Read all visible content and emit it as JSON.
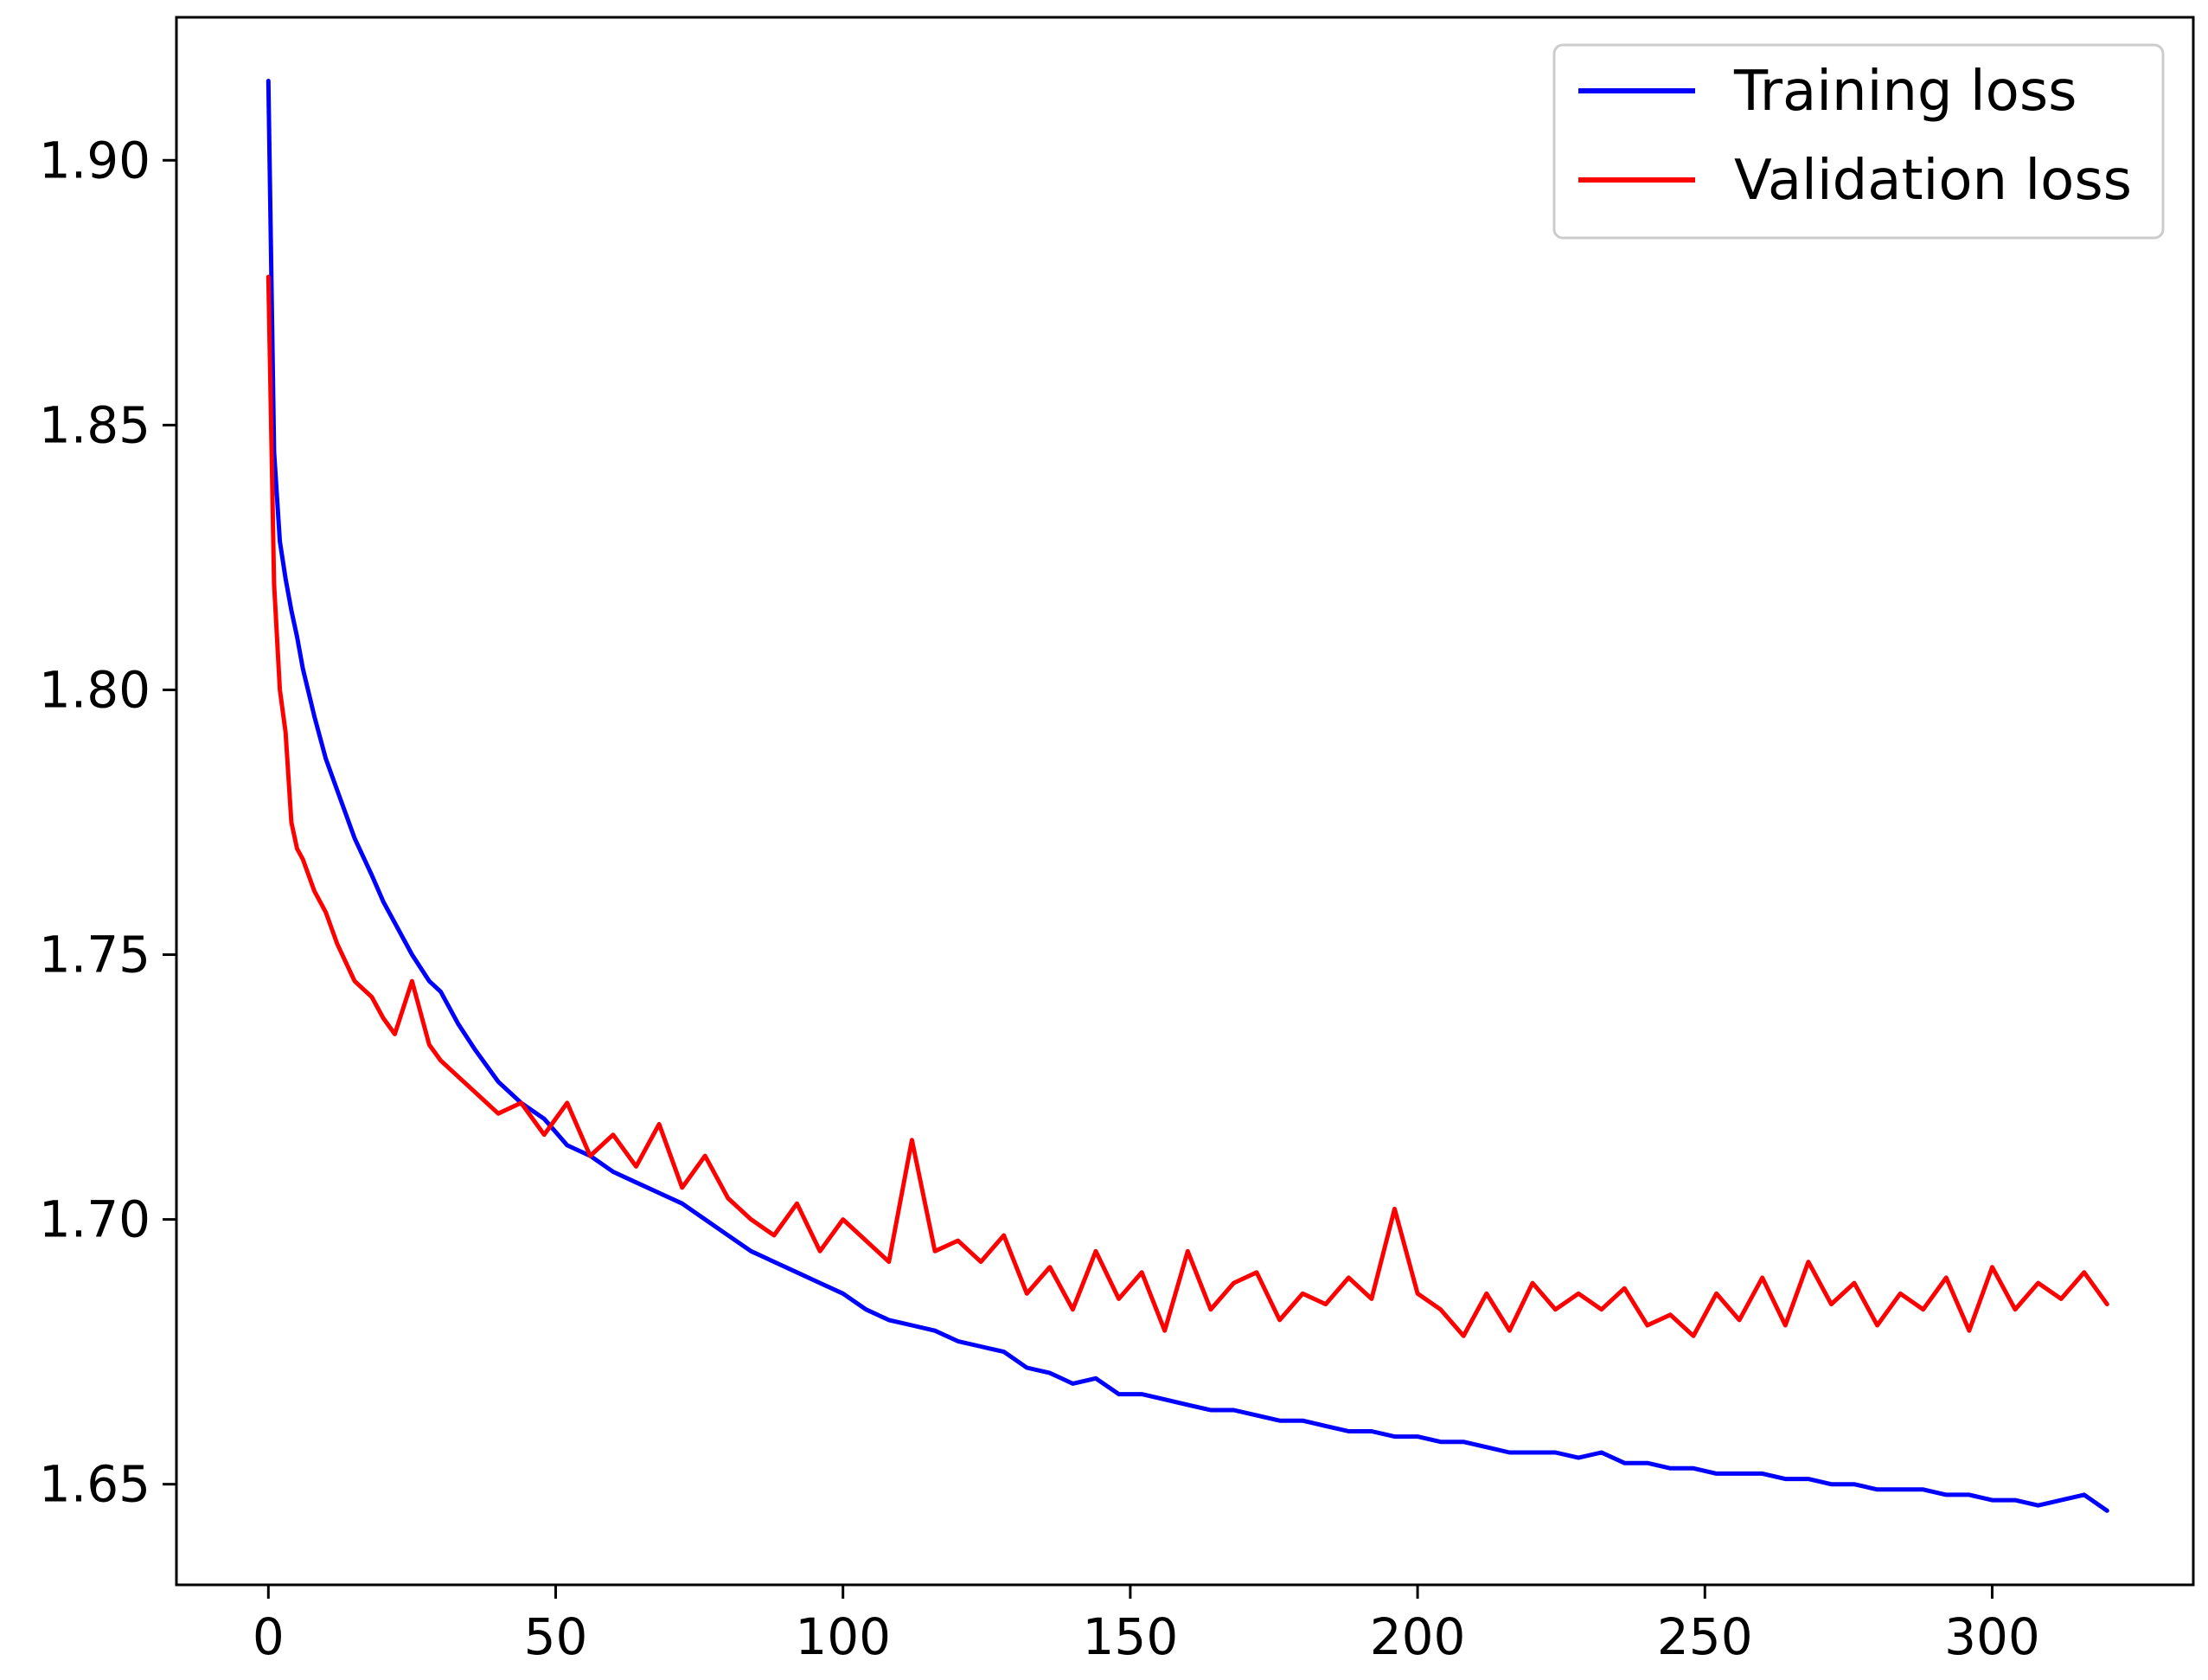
{
  "chart_data": {
    "type": "line",
    "title": "",
    "xlabel": "",
    "ylabel": "",
    "xlim": [
      -16,
      335
    ],
    "ylim": [
      1.631,
      1.927
    ],
    "xticks": [
      0,
      50,
      100,
      150,
      200,
      250,
      300
    ],
    "xtick_labels": [
      "0",
      "50",
      "100",
      "150",
      "200",
      "250",
      "300"
    ],
    "yticks": [
      1.65,
      1.7,
      1.75,
      1.8,
      1.85,
      1.9
    ],
    "ytick_labels": [
      "1.65",
      "1.70",
      "1.75",
      "1.80",
      "1.85",
      "1.90"
    ],
    "grid": false,
    "legend_position": "top-right",
    "x": [
      0,
      1,
      2,
      3,
      4,
      5,
      6,
      8,
      10,
      12,
      15,
      18,
      20,
      22,
      25,
      28,
      30,
      33,
      36,
      40,
      44,
      48,
      52,
      56,
      60,
      64,
      68,
      72,
      76,
      80,
      84,
      88,
      92,
      96,
      100,
      104,
      108,
      112,
      116,
      120,
      124,
      128,
      132,
      136,
      140,
      144,
      148,
      152,
      156,
      160,
      164,
      168,
      172,
      176,
      180,
      184,
      188,
      192,
      196,
      200,
      204,
      208,
      212,
      216,
      220,
      224,
      228,
      232,
      236,
      240,
      244,
      248,
      252,
      256,
      260,
      264,
      268,
      272,
      276,
      280,
      284,
      288,
      292,
      296,
      300,
      304,
      308,
      312,
      316,
      320
    ],
    "series": [
      {
        "name": "Training loss",
        "color": "#0000ff",
        "values": [
          1.915,
          1.845,
          1.828,
          1.821,
          1.815,
          1.81,
          1.804,
          1.795,
          1.787,
          1.781,
          1.772,
          1.765,
          1.76,
          1.756,
          1.75,
          1.745,
          1.743,
          1.737,
          1.732,
          1.726,
          1.722,
          1.719,
          1.714,
          1.712,
          1.709,
          1.707,
          1.705,
          1.703,
          1.7,
          1.697,
          1.694,
          1.692,
          1.69,
          1.688,
          1.686,
          1.683,
          1.681,
          1.68,
          1.679,
          1.677,
          1.676,
          1.675,
          1.672,
          1.671,
          1.669,
          1.67,
          1.667,
          1.667,
          1.666,
          1.665,
          1.664,
          1.664,
          1.663,
          1.662,
          1.662,
          1.661,
          1.66,
          1.66,
          1.659,
          1.659,
          1.658,
          1.658,
          1.657,
          1.656,
          1.656,
          1.656,
          1.655,
          1.656,
          1.654,
          1.654,
          1.653,
          1.653,
          1.652,
          1.652,
          1.652,
          1.651,
          1.651,
          1.65,
          1.65,
          1.649,
          1.649,
          1.649,
          1.648,
          1.648,
          1.647,
          1.647,
          1.646,
          1.647,
          1.648,
          1.645
        ]
      },
      {
        "name": "Validation loss",
        "color": "#ff0000",
        "values": [
          1.878,
          1.82,
          1.8,
          1.792,
          1.775,
          1.77,
          1.768,
          1.762,
          1.758,
          1.752,
          1.745,
          1.742,
          1.738,
          1.735,
          1.745,
          1.733,
          1.73,
          1.727,
          1.724,
          1.72,
          1.722,
          1.716,
          1.722,
          1.712,
          1.716,
          1.71,
          1.718,
          1.706,
          1.712,
          1.704,
          1.7,
          1.697,
          1.703,
          1.694,
          1.7,
          1.696,
          1.692,
          1.715,
          1.694,
          1.696,
          1.692,
          1.697,
          1.686,
          1.691,
          1.683,
          1.694,
          1.685,
          1.69,
          1.679,
          1.694,
          1.683,
          1.688,
          1.69,
          1.681,
          1.686,
          1.684,
          1.689,
          1.685,
          1.702,
          1.686,
          1.683,
          1.678,
          1.686,
          1.679,
          1.688,
          1.683,
          1.686,
          1.683,
          1.687,
          1.68,
          1.682,
          1.678,
          1.686,
          1.681,
          1.689,
          1.68,
          1.692,
          1.684,
          1.688,
          1.68,
          1.686,
          1.683,
          1.689,
          1.679,
          1.691,
          1.683,
          1.688,
          1.685,
          1.69,
          1.684
        ]
      }
    ]
  }
}
